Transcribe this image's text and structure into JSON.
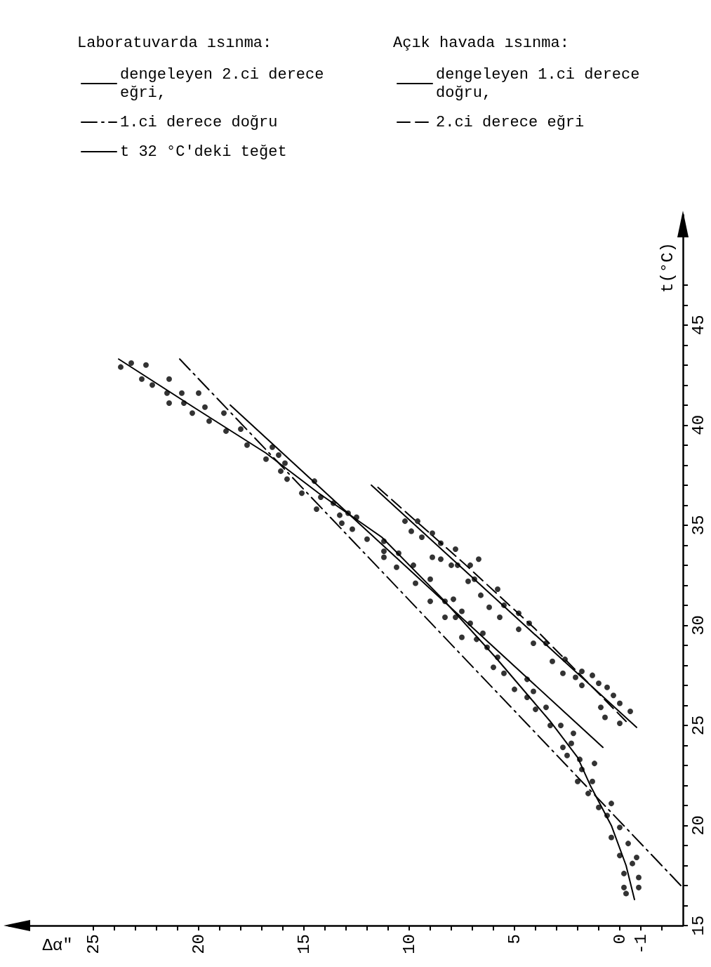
{
  "chart_data": {
    "type": "scatter",
    "xlabel": "Δα″",
    "ylabel": "t(°C)",
    "xlim": [
      29,
      -3
    ],
    "ylim": [
      15,
      50.5
    ],
    "xticks": [
      25,
      {
        "value": 24,
        "label": null
      },
      {
        "value": 23,
        "label": null
      },
      {
        "value": 22,
        "label": null
      },
      {
        "value": 21,
        "label": null
      },
      20,
      {
        "value": 19,
        "label": null
      },
      {
        "value": 18,
        "label": null
      },
      {
        "value": 17,
        "label": null
      },
      {
        "value": 16,
        "label": null
      },
      15,
      {
        "value": 14,
        "label": null
      },
      {
        "value": 13,
        "label": null
      },
      {
        "value": 12,
        "label": null
      },
      {
        "value": 11,
        "label": null
      },
      10,
      {
        "value": 9,
        "label": null
      },
      {
        "value": 8,
        "label": null
      },
      {
        "value": 7,
        "label": null
      },
      {
        "value": 6,
        "label": null
      },
      5,
      {
        "value": 4,
        "label": null
      },
      {
        "value": 3,
        "label": null
      },
      {
        "value": 2,
        "label": null
      },
      {
        "value": 1,
        "label": null
      },
      0,
      -1,
      {
        "value": -2,
        "label": null
      }
    ],
    "yticks": [
      15,
      {
        "value": 16,
        "label": null
      },
      {
        "value": 17,
        "label": null
      },
      {
        "value": 18,
        "label": null
      },
      {
        "value": 19,
        "label": null
      },
      20,
      {
        "value": 21,
        "label": null
      },
      {
        "value": 22,
        "label": null
      },
      {
        "value": 23,
        "label": null
      },
      {
        "value": 24,
        "label": null
      },
      25,
      {
        "value": 26,
        "label": null
      },
      {
        "value": 27,
        "label": null
      },
      {
        "value": 28,
        "label": null
      },
      {
        "value": 29,
        "label": null
      },
      30,
      {
        "value": 31,
        "label": null
      },
      {
        "value": 32,
        "label": null
      },
      {
        "value": 33,
        "label": null
      },
      {
        "value": 34,
        "label": null
      },
      35,
      {
        "value": 36,
        "label": null
      },
      {
        "value": 37,
        "label": null
      },
      {
        "value": 38,
        "label": null
      },
      {
        "value": 39,
        "label": null
      },
      40,
      {
        "value": 41,
        "label": null
      },
      {
        "value": 42,
        "label": null
      },
      {
        "value": 43,
        "label": null
      },
      {
        "value": 44,
        "label": null
      },
      45,
      {
        "value": 46,
        "label": null
      },
      {
        "value": 47,
        "label": null
      }
    ],
    "grid": false,
    "legend": "top right",
    "annotations": [
      "Laboratuvarda ısınma:",
      "Açık havada ısınma:"
    ],
    "series": [
      {
        "color": "#000000",
        "marker": "circle",
        "values": [
          42.9,
          43.1,
          43.0,
          42.3,
          42.0,
          42.3,
          41.6,
          41.1,
          41.6,
          41.1,
          40.6,
          41.6,
          40.9,
          40.2,
          40.6,
          39.7,
          39.8,
          39.0,
          38.3,
          38.9,
          37.7,
          38.1,
          38.5,
          37.3,
          36.6,
          37.2,
          35.8,
          36.4,
          36.1,
          35.5,
          35.1,
          35.6,
          34.8,
          35.4,
          34.3,
          34.2,
          33.4,
          33.7,
          32.9,
          33.6,
          33.0,
          32.1,
          32.3,
          31.2,
          31.2,
          30.4,
          31.3,
          30.4,
          30.7,
          29.4,
          30.1,
          29.3,
          29.6,
          28.9,
          27.9,
          28.4,
          27.6,
          26.8,
          27.3,
          26.4,
          26.7,
          25.8,
          25.9,
          25.0,
          25.0,
          23.9,
          24.1,
          24.6,
          23.5,
          23.3,
          22.8,
          23.1,
          22.2,
          22.2,
          21.6,
          20.9,
          21.1,
          20.5,
          19.9,
          19.4,
          19.1,
          18.5,
          18.4,
          18.1,
          17.6,
          17.4,
          16.9,
          16.9,
          16.6
        ],
        "x": [
          23.7,
          23.2,
          22.5,
          22.7,
          22.2,
          21.4,
          21.5,
          21.4,
          20.8,
          20.7,
          20.3,
          20.0,
          19.7,
          19.5,
          18.8,
          18.7,
          18.0,
          17.7,
          16.8,
          16.5,
          16.1,
          15.9,
          16.2,
          15.8,
          15.1,
          14.5,
          14.4,
          14.2,
          13.6,
          13.3,
          13.2,
          12.9,
          12.7,
          12.5,
          12.0,
          11.2,
          11.2,
          11.2,
          10.6,
          10.5,
          9.8,
          9.7,
          9.0,
          9.0,
          8.3,
          8.3,
          7.9,
          7.8,
          7.5,
          7.5,
          7.1,
          6.8,
          6.5,
          6.3,
          6.0,
          5.8,
          5.5,
          5.0,
          4.4,
          4.4,
          4.1,
          4.0,
          3.5,
          3.3,
          2.8,
          2.7,
          2.3,
          2.2,
          2.5,
          1.9,
          1.8,
          1.2,
          2.0,
          1.3,
          1.5,
          1.0,
          0.4,
          0.6,
          0.0,
          0.4,
          -0.4,
          0.0,
          -0.8,
          -0.6,
          -0.2,
          -0.9,
          -0.2,
          -0.9,
          -0.3
        ]
      },
      {
        "type": "line",
        "name": "dengeleyen 2.ci derece eğri,",
        "color": "#000000",
        "marker": "none",
        "line_style": "solid",
        "values": [
          16.3,
          18.0,
          20.0,
          22.0,
          23.4,
          25.2,
          28.4,
          31.3,
          34.4,
          36.6,
          38.6,
          40.8,
          43.3
        ],
        "x": [
          -0.7,
          -0.3,
          0.4,
          1.4,
          2.0,
          3.3,
          5.9,
          8.4,
          11.3,
          14.3,
          16.8,
          20.1,
          23.8
        ]
      },
      {
        "type": "line",
        "name": "1.ci derece doğru",
        "color": "#000000",
        "marker": "none",
        "line_style": "dashdot",
        "values": [
          17.0,
          43.3
        ],
        "x": [
          -2.9,
          20.9
        ]
      },
      {
        "type": "line",
        "name": "t 32 °C'deki teğet",
        "color": "#000000",
        "marker": "none",
        "line_style": "solid",
        "values": [
          23.9,
          41.0
        ],
        "x": [
          0.8,
          18.5
        ]
      },
      {
        "color": "#000000",
        "marker": "circle",
        "values": [
          35.2,
          34.7,
          35.2,
          34.4,
          34.6,
          34.1,
          33.4,
          33.3,
          33.8,
          33.0,
          33.0,
          33.0,
          33.3,
          32.2,
          32.3,
          31.5,
          30.9,
          31.8,
          31.0,
          30.4,
          30.6,
          30.1,
          29.8,
          29.1,
          29.1,
          28.2,
          28.3,
          27.6,
          27.7,
          27.0,
          27.1,
          26.5,
          25.4,
          26.1,
          25.7,
          25.1,
          26.9,
          25.9,
          27.5,
          27.4
        ],
        "x": [
          10.2,
          9.9,
          9.6,
          9.4,
          8.9,
          8.5,
          8.9,
          8.5,
          7.8,
          8.0,
          7.7,
          7.1,
          6.7,
          7.2,
          6.9,
          6.6,
          6.2,
          5.8,
          5.5,
          5.7,
          4.8,
          4.3,
          4.8,
          4.1,
          3.5,
          3.2,
          2.6,
          2.7,
          1.8,
          1.8,
          1.0,
          0.3,
          0.7,
          0.0,
          -0.5,
          0.0,
          0.6,
          0.9,
          1.3,
          2.1
        ]
      },
      {
        "type": "line",
        "name": "dengeleyen 1.ci derece doğru,",
        "color": "#000000",
        "marker": "none",
        "line_style": "solid",
        "values": [
          24.9,
          37.0
        ],
        "x": [
          -0.8,
          11.8
        ]
      },
      {
        "type": "line",
        "name": "2.ci derece eğri",
        "color": "#000000",
        "marker": "none",
        "line_style": "dashed",
        "values": [
          25.2,
          29.8,
          33.0,
          36.9
        ],
        "x": [
          -0.3,
          4.0,
          7.3,
          11.5
        ]
      }
    ]
  }
}
